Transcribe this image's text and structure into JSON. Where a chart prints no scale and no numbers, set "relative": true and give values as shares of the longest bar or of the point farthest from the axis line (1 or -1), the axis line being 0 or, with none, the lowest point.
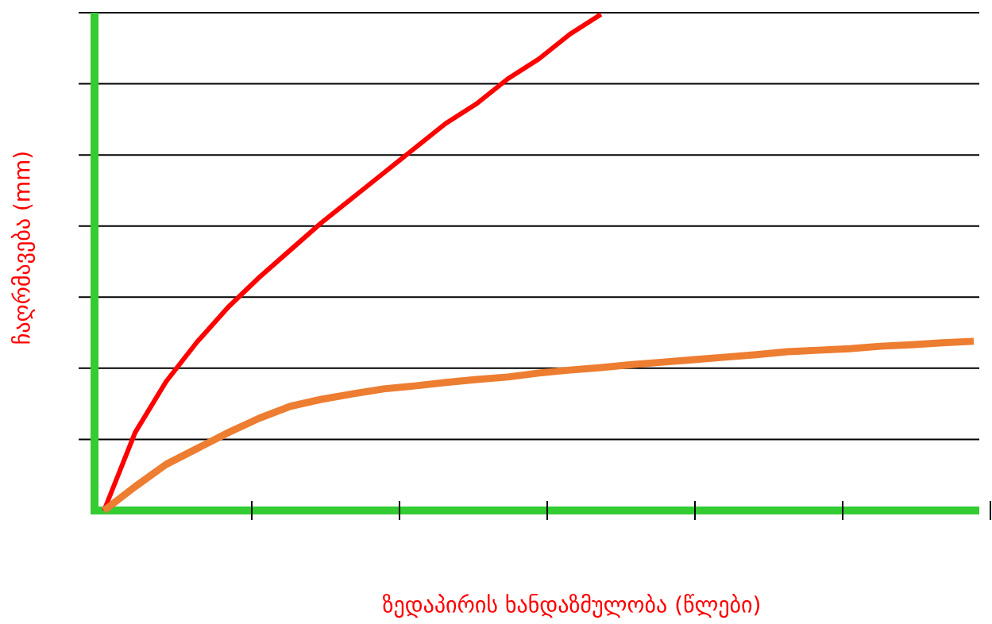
{
  "chart_data": {
    "type": "line",
    "xlabel": "ზედაპირის ხანდაზმულობა (წლები)",
    "ylabel": "ჩაღრმავება (mm)",
    "relative": true,
    "grid": "y",
    "categories": [
      null,
      null,
      null,
      null,
      null,
      null,
      null,
      null,
      null,
      null,
      null,
      null,
      null,
      null,
      null,
      null,
      null,
      null,
      null,
      null,
      null,
      null,
      null,
      null,
      null,
      null,
      null,
      null,
      null
    ],
    "series": [
      {
        "color": "#ff0000",
        "values": [
          0,
          0.157,
          0.26,
          0.34,
          0.41,
          0.47,
          0.525,
          0.58,
          0.63,
          0.68,
          0.73,
          0.78,
          0.82,
          0.87,
          0.91,
          0.96,
          1.0,
          null,
          null,
          null,
          null,
          null,
          null,
          null,
          null,
          null,
          null,
          null,
          null
        ]
      },
      {
        "color": "#ed7d31",
        "values": [
          0,
          0.048,
          0.093,
          0.125,
          0.157,
          0.186,
          0.21,
          0.224,
          0.235,
          0.245,
          0.251,
          0.258,
          0.264,
          0.269,
          0.277,
          0.283,
          0.288,
          0.294,
          0.299,
          0.304,
          0.309,
          0.314,
          0.32,
          0.323,
          0.326,
          0.331,
          0.334,
          0.338,
          0.341
        ]
      }
    ]
  }
}
